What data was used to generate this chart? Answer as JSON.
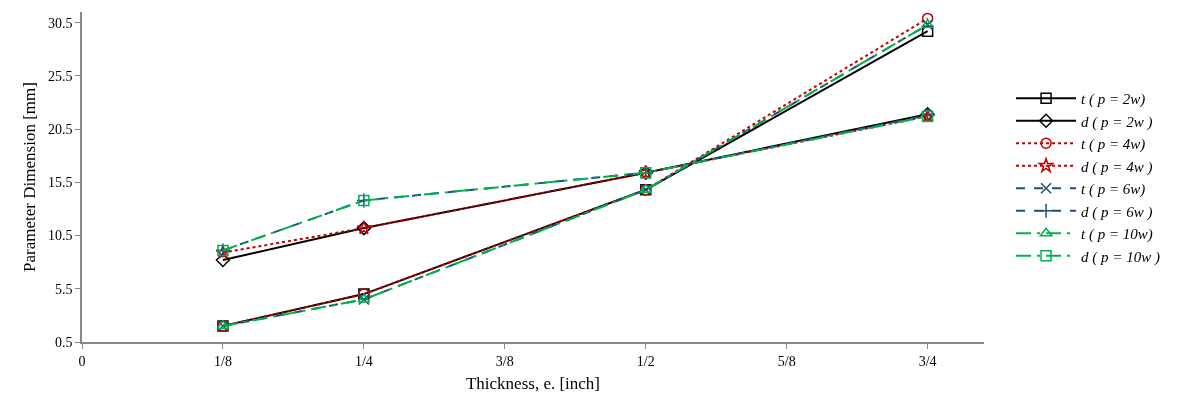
{
  "chart_data": {
    "type": "line",
    "xlabel": "Thickness, e. [inch]",
    "ylabel": "Parameter Dimension [mm]",
    "x": [
      0.125,
      0.25,
      0.5,
      0.75
    ],
    "xlim": [
      0,
      0.8
    ],
    "xticks": [
      {
        "value": 0,
        "label": "0"
      },
      {
        "value": 0.125,
        "label": "1/8"
      },
      {
        "value": 0.25,
        "label": "1/4"
      },
      {
        "value": 0.375,
        "label": "3/8"
      },
      {
        "value": 0.5,
        "label": "1/2"
      },
      {
        "value": 0.625,
        "label": "5/8"
      },
      {
        "value": 0.75,
        "label": "3/4"
      }
    ],
    "ylim": [
      0.5,
      31.5
    ],
    "yticks": [
      0.5,
      5.5,
      10.5,
      15.5,
      20.5,
      25.5,
      30.5
    ],
    "legend": "right",
    "series": [
      {
        "name": "t ( p = 2w)",
        "color": "#000000",
        "marker": "square",
        "line_style": "solid",
        "values": [
          2.0,
          5.0,
          14.8,
          29.7
        ]
      },
      {
        "name": "d ( p = 2w )",
        "color": "#000000",
        "marker": "diamond",
        "line_style": "solid",
        "values": [
          8.2,
          11.2,
          16.4,
          21.9
        ]
      },
      {
        "name": "t ( p = 4w)",
        "color": "#c00000",
        "marker": "circle",
        "line_style": "dotted",
        "values": [
          2.0,
          5.0,
          14.8,
          30.9
        ]
      },
      {
        "name": "d ( p = 4w )",
        "color": "#c00000",
        "marker": "star",
        "line_style": "dotted",
        "values": [
          8.9,
          11.2,
          16.4,
          21.7
        ]
      },
      {
        "name": "t ( p = 6w)",
        "color": "#1f4e79",
        "marker": "x",
        "line_style": "dashed",
        "values": [
          2.0,
          4.5,
          14.8,
          30.3
        ]
      },
      {
        "name": "d ( p = 6w )",
        "color": "#1f4e79",
        "marker": "cross",
        "line_style": "dashed",
        "values": [
          9.1,
          13.8,
          16.4,
          21.8
        ]
      },
      {
        "name": "t ( p = 10w)",
        "color": "#00b050",
        "marker": "triangle",
        "line_style": "dashdot",
        "values": [
          2.0,
          4.5,
          14.8,
          30.3
        ]
      },
      {
        "name": "d ( p = 10w )",
        "color": "#00b050",
        "marker": "square",
        "line_style": "dashdot",
        "values": [
          9.1,
          13.8,
          16.4,
          21.7
        ]
      }
    ]
  }
}
